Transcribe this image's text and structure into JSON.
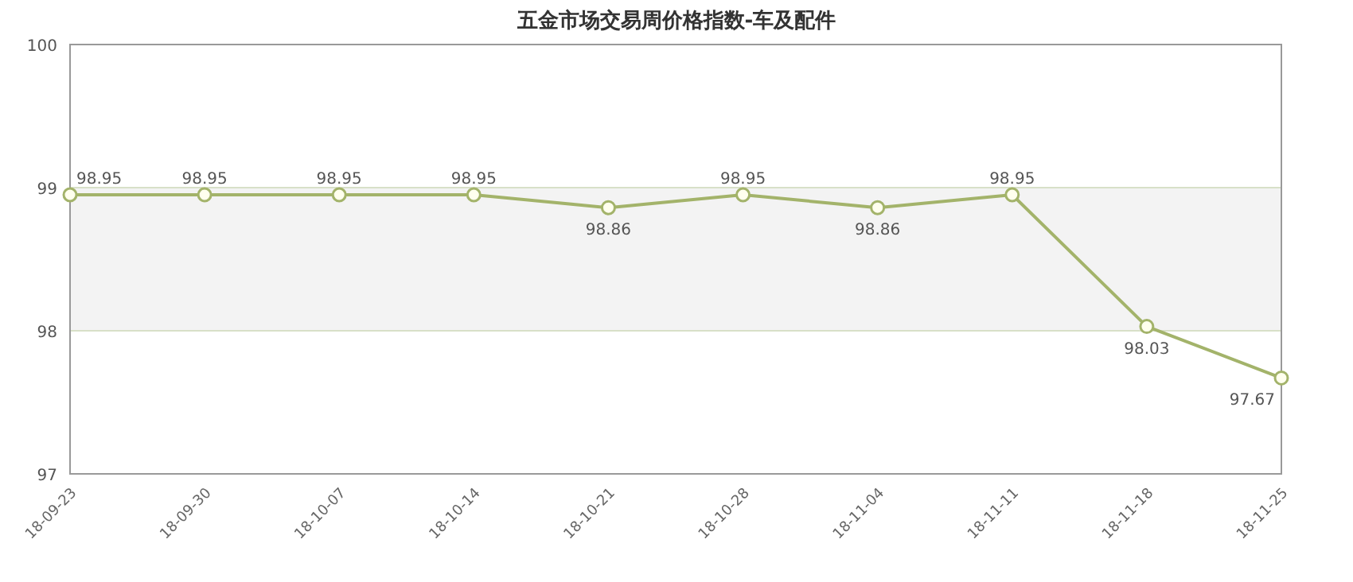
{
  "chart_data": {
    "type": "line",
    "title": "五金市场交易周价格指数-车及配件",
    "categories": [
      "18-09-23",
      "18-09-30",
      "18-10-07",
      "18-10-14",
      "18-10-21",
      "18-10-28",
      "18-11-04",
      "18-11-11",
      "18-11-18",
      "18-11-25"
    ],
    "series": [
      {
        "color": "#a3b36a",
        "values": [
          98.95,
          98.95,
          98.95,
          98.95,
          98.86,
          98.95,
          98.86,
          98.95,
          98.03,
          97.67
        ]
      }
    ],
    "ylim": [
      97,
      100
    ],
    "yticks": [
      97,
      98,
      99,
      100
    ],
    "grid": "y",
    "bands": [
      {
        "axis": "y",
        "from": 98,
        "to": 99,
        "color": "#f3f3f3"
      }
    ],
    "data_labels": true,
    "marker": "circle",
    "line_style": "solid"
  }
}
